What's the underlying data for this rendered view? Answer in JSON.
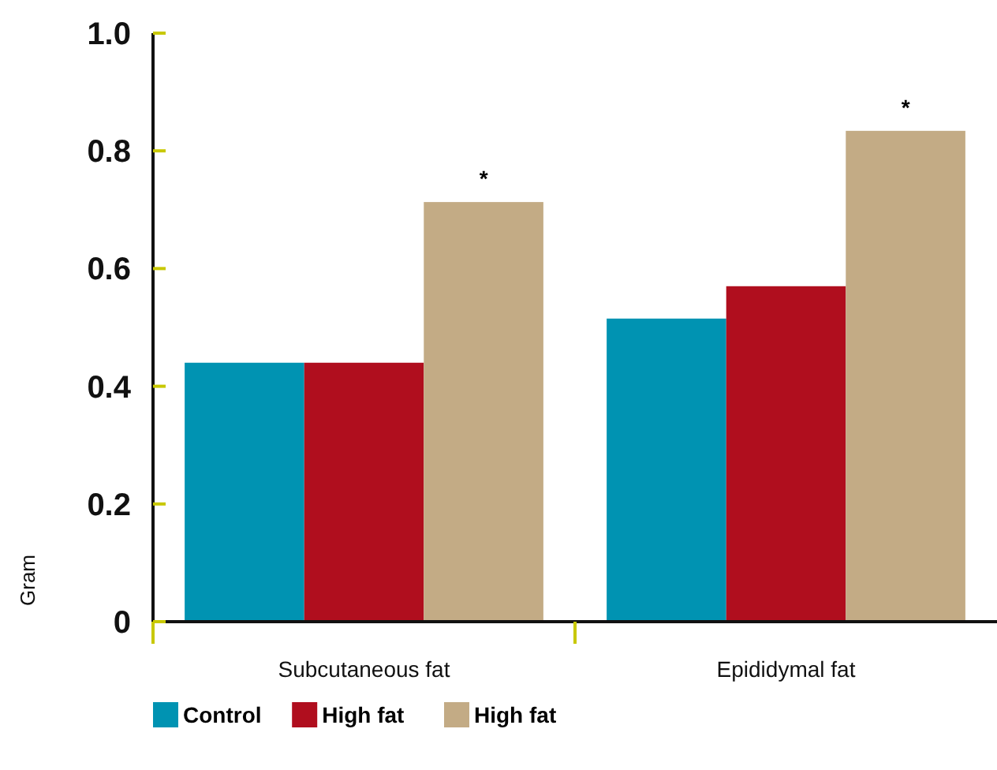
{
  "chart_data": {
    "type": "bar",
    "ylabel": "Gram",
    "categories": [
      "Subcutaneous fat",
      "Epididymal fat"
    ],
    "series": [
      {
        "name": "Control",
        "color": "#0093b2",
        "values": [
          0.44,
          0.515
        ]
      },
      {
        "name": "High fat",
        "color": "#b00e1e",
        "values": [
          0.44,
          0.57
        ]
      },
      {
        "name": "High fat",
        "color": "#c3ab85",
        "values": [
          0.713,
          0.834
        ]
      }
    ],
    "ylim": [
      0,
      1
    ],
    "yticks": [
      {
        "value": 0,
        "label": "0"
      },
      0.2,
      0.4,
      0.6,
      0.8,
      {
        "value": 1,
        "label": "1.0"
      }
    ],
    "annotations": [
      "*",
      "*"
    ],
    "legend": "bottom",
    "grid": false
  }
}
